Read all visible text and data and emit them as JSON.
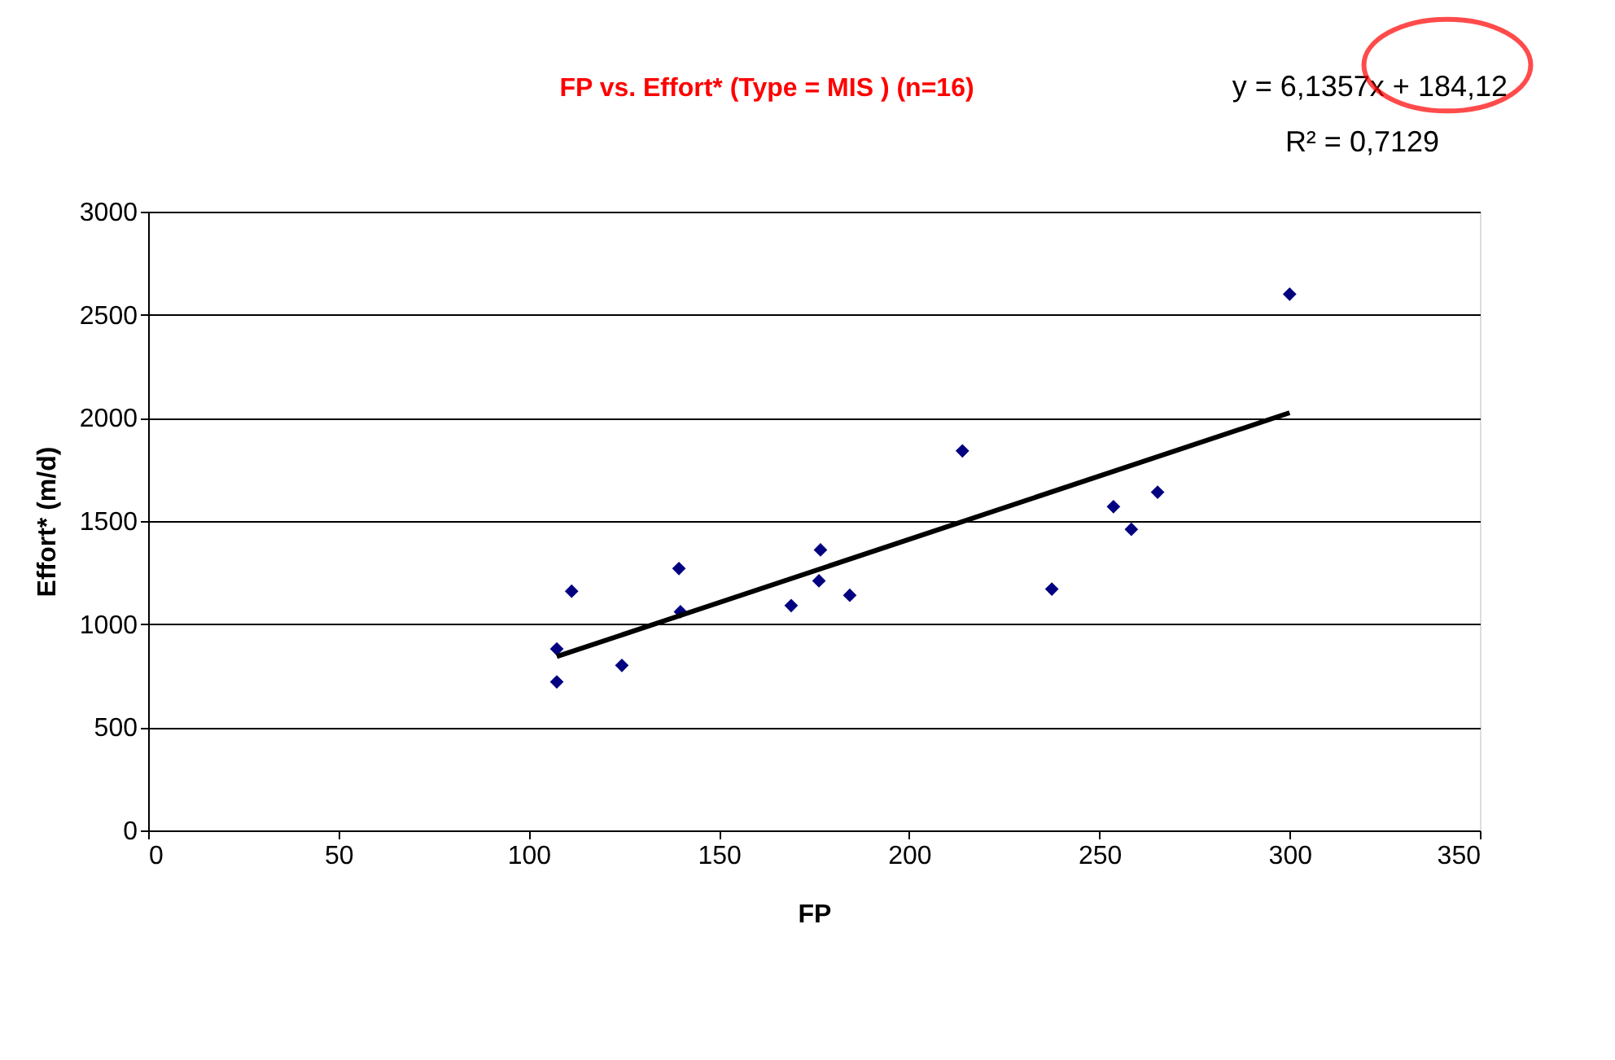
{
  "chart_data": {
    "type": "scatter",
    "title": "FP vs. Effort* (Type = MIS ) (n=16)",
    "xlabel": "FP",
    "ylabel": "Effort* (m/d)",
    "annotations": [
      "y = 6,1357x + 184,12",
      "R² = 0,7129"
    ],
    "xlim": [
      0,
      350
    ],
    "xticks": [
      0,
      50,
      100,
      150,
      200,
      250,
      300,
      350
    ],
    "ylim": [
      0,
      3000
    ],
    "yticks": [
      0,
      500,
      1000,
      1500,
      2000,
      2500,
      3000
    ],
    "grid": "y",
    "marker": "diamond",
    "series": [
      {
        "color": "#000080",
        "x": [
          107.4,
          107.4,
          111.3,
          124.5,
          139.5,
          139.9,
          169,
          176.7,
          176.3,
          184.4,
          214,
          237.5,
          253.7,
          258.4,
          265.3,
          300
        ],
        "values": [
          880,
          720,
          1160,
          800,
          1270,
          1060,
          1090,
          1360,
          1210,
          1140,
          1840,
          1170,
          1570,
          1460,
          1640,
          2600
        ]
      },
      {
        "type": "line",
        "color": "#000000",
        "line_style": "solid",
        "marker": "none",
        "x": [
          107.4,
          300
        ],
        "values": [
          843,
          2025
        ]
      }
    ]
  }
}
